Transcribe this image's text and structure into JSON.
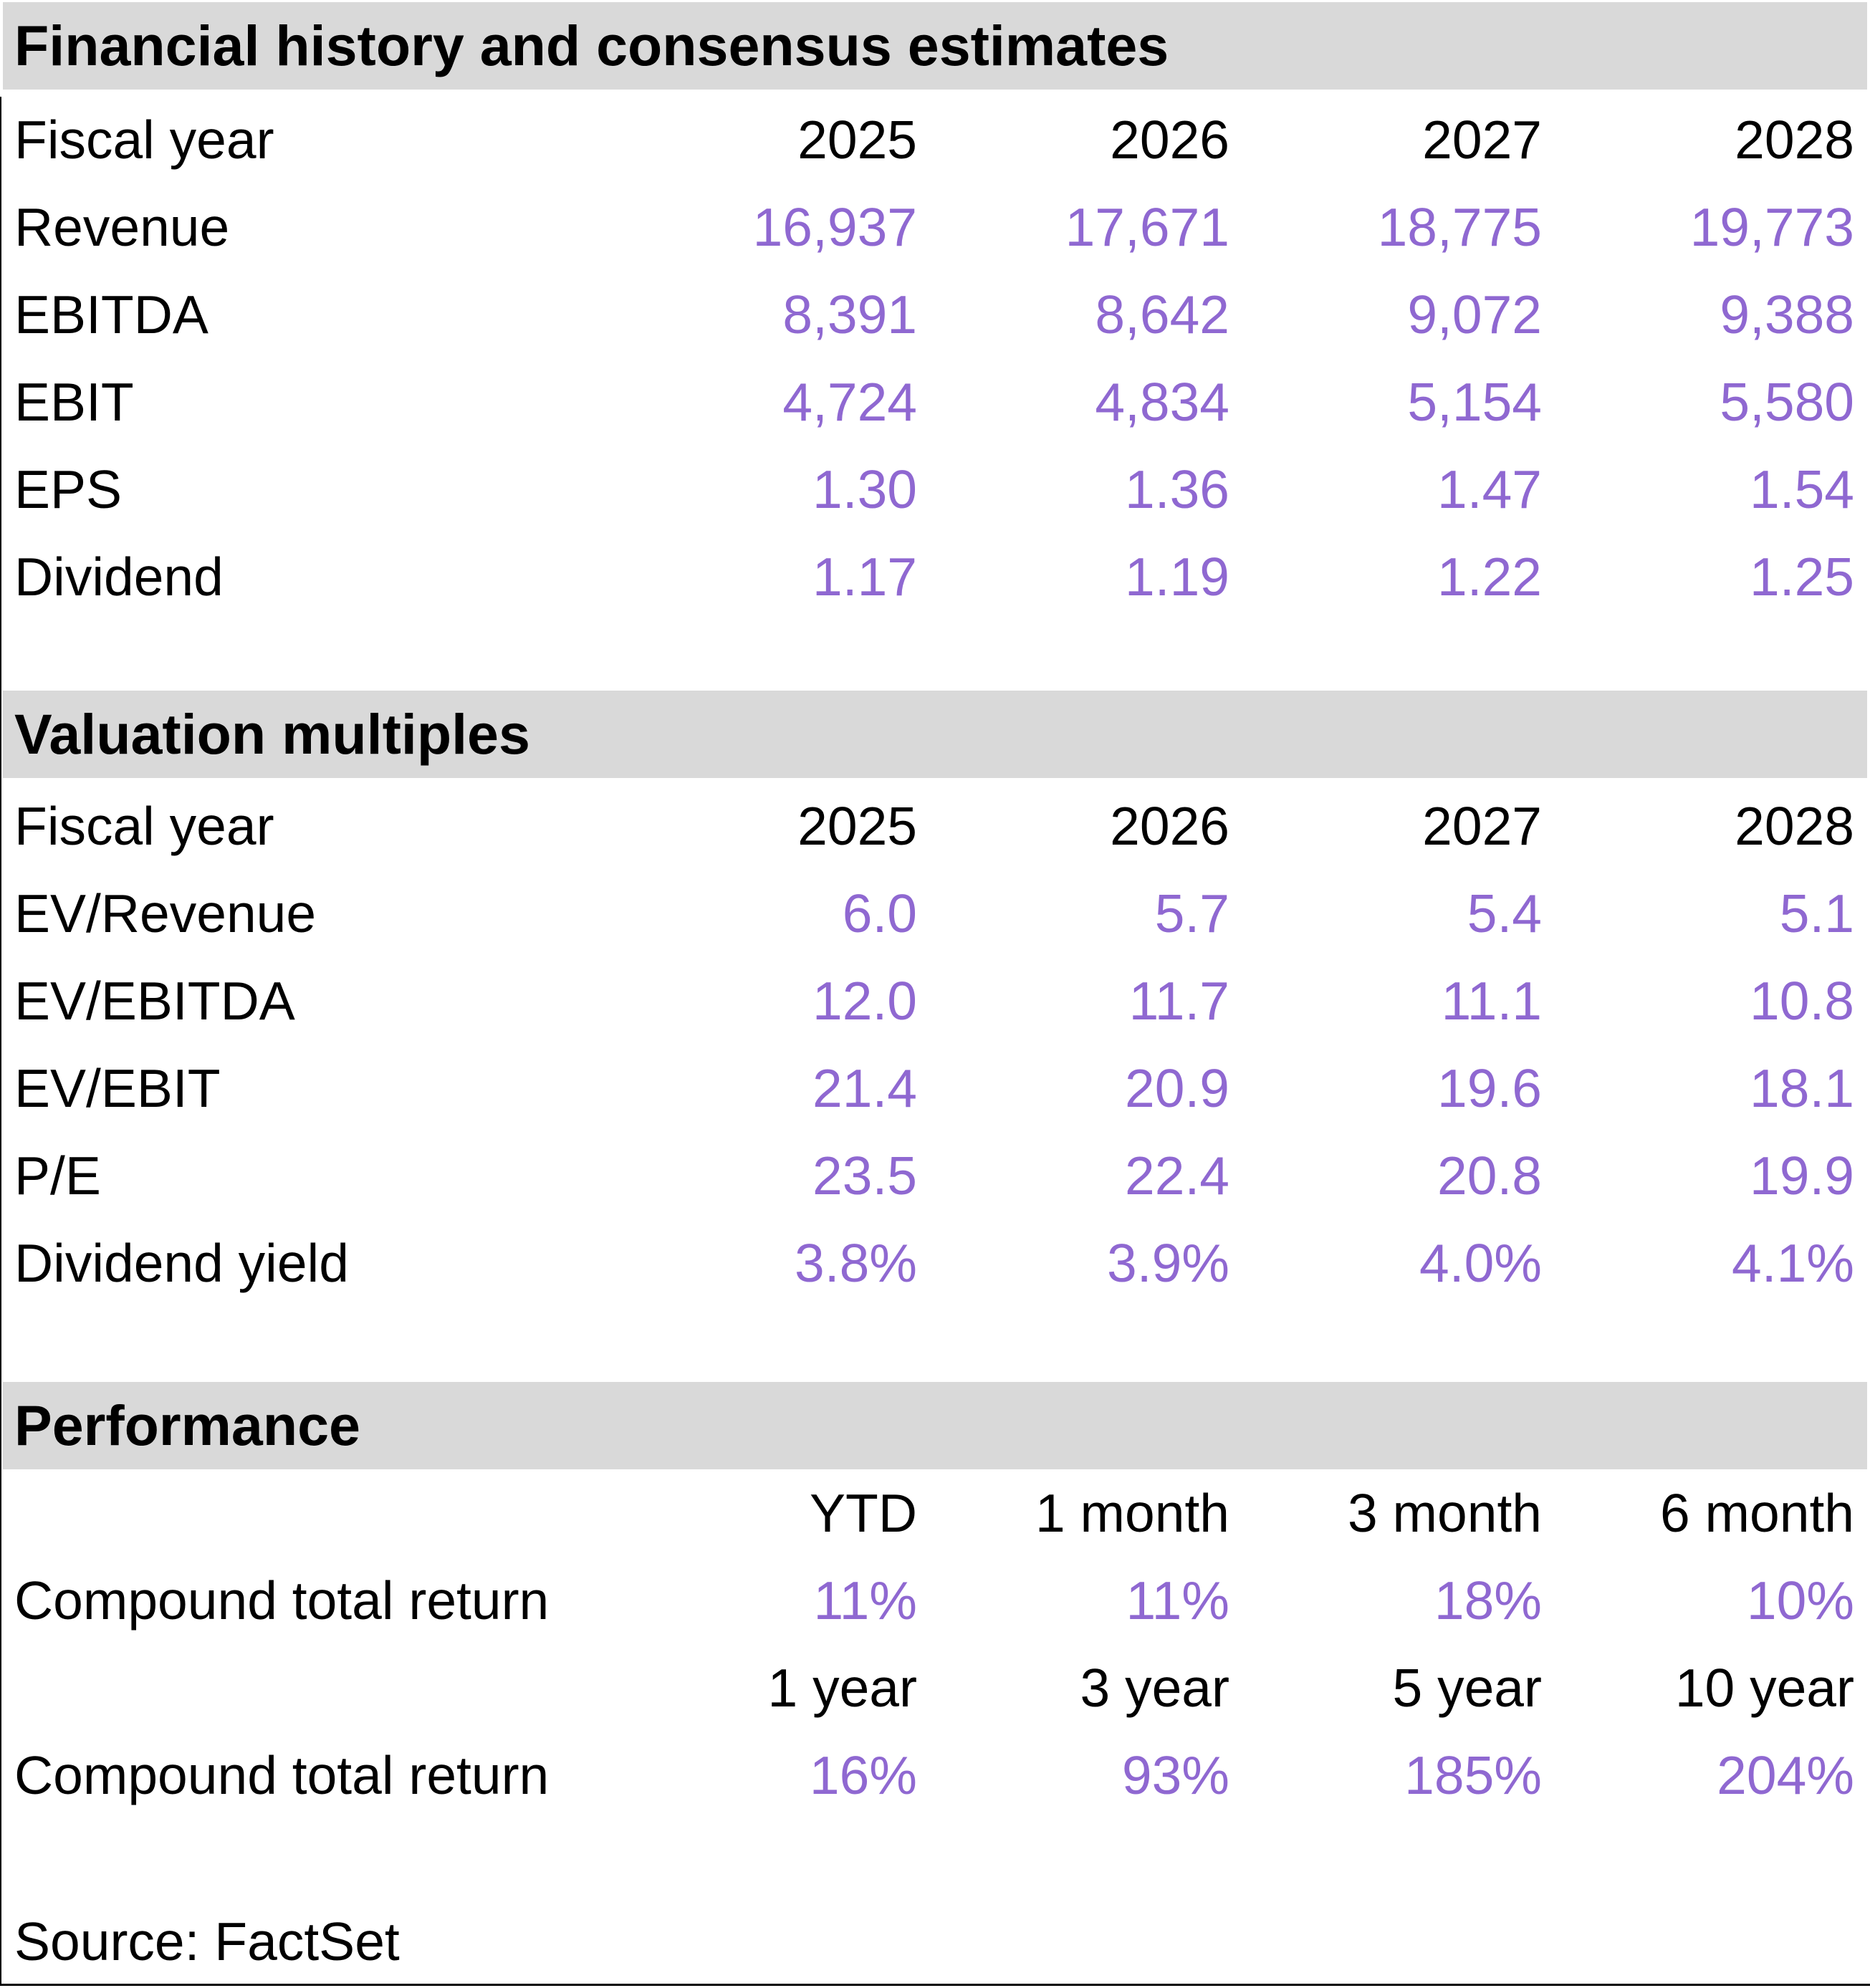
{
  "colors": {
    "accent_purple": "#8F68D1",
    "band_gray": "#D9D9D9"
  },
  "source_label": "Source: FactSet",
  "sections": [
    {
      "title": "Financial history and consensus estimates",
      "header_label": "Fiscal year",
      "columns": [
        "2025",
        "2026",
        "2027",
        "2028"
      ],
      "rows": [
        {
          "label": "Revenue",
          "values": [
            "16,937",
            "17,671",
            "18,775",
            "19,773"
          ]
        },
        {
          "label": "EBITDA",
          "values": [
            "8,391",
            "8,642",
            "9,072",
            "9,388"
          ]
        },
        {
          "label": "EBIT",
          "values": [
            "4,724",
            "4,834",
            "5,154",
            "5,580"
          ]
        },
        {
          "label": "EPS",
          "values": [
            "1.30",
            "1.36",
            "1.47",
            "1.54"
          ]
        },
        {
          "label": "Dividend",
          "values": [
            "1.17",
            "1.19",
            "1.22",
            "1.25"
          ]
        }
      ]
    },
    {
      "title": "Valuation multiples",
      "header_label": "Fiscal year",
      "columns": [
        "2025",
        "2026",
        "2027",
        "2028"
      ],
      "rows": [
        {
          "label": "EV/Revenue",
          "values": [
            "6.0",
            "5.7",
            "5.4",
            "5.1"
          ]
        },
        {
          "label": "EV/EBITDA",
          "values": [
            "12.0",
            "11.7",
            "11.1",
            "10.8"
          ]
        },
        {
          "label": "EV/EBIT",
          "values": [
            "21.4",
            "20.9",
            "19.6",
            "18.1"
          ]
        },
        {
          "label": "P/E",
          "values": [
            "23.5",
            "22.4",
            "20.8",
            "19.9"
          ]
        },
        {
          "label": "Dividend yield",
          "values": [
            "3.8%",
            "3.9%",
            "4.0%",
            "4.1%"
          ]
        }
      ]
    },
    {
      "title": "Performance",
      "groups": [
        {
          "columns": [
            "YTD",
            "1 month",
            "3 month",
            "6 month"
          ],
          "row": {
            "label": "Compound total return",
            "values": [
              "11%",
              "11%",
              "18%",
              "10%"
            ]
          }
        },
        {
          "columns": [
            "1 year",
            "3 year",
            "5 year",
            "10 year"
          ],
          "row": {
            "label": "Compound total return",
            "values": [
              "16%",
              "93%",
              "185%",
              "204%"
            ]
          }
        }
      ]
    }
  ]
}
